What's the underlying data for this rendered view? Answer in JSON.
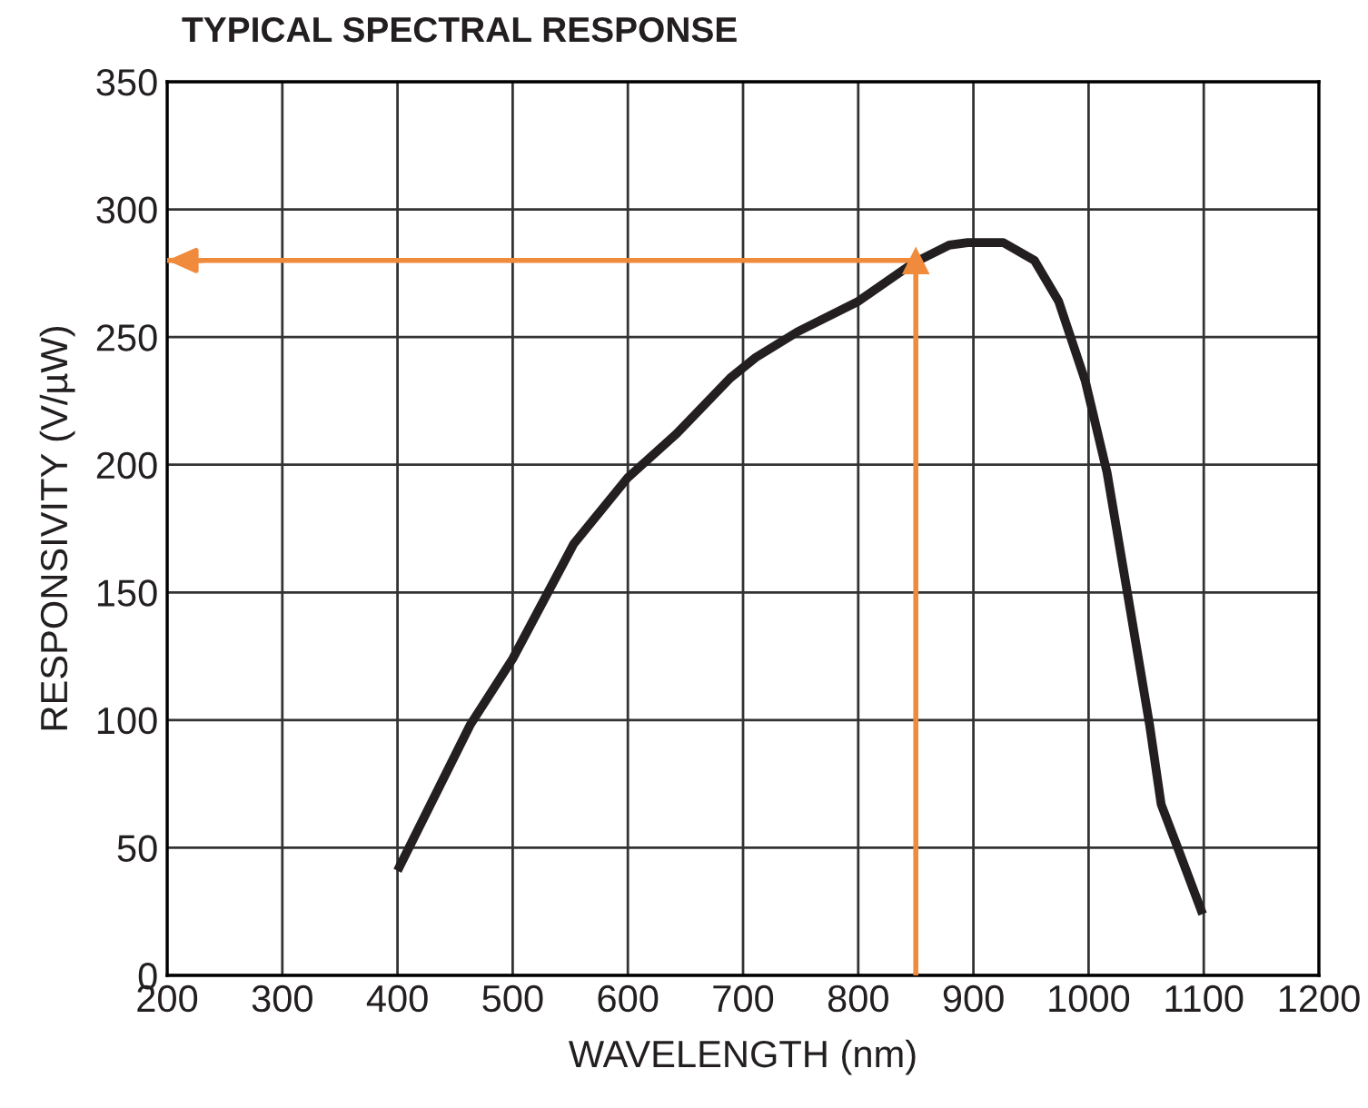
{
  "chart_data": {
    "type": "line",
    "title": "TYPICAL SPECTRAL RESPONSE",
    "xlabel": "WAVELENGTH (nm)",
    "ylabel": "RESPONSIVITY (V/µW)",
    "series": [
      {
        "color": "#231f20",
        "x": [
          400,
          463,
          500,
          553,
          600,
          642,
          689,
          711,
          747,
          800,
          848,
          879,
          895,
          926,
          953,
          974,
          997,
          1016,
          1037,
          1053,
          1063,
          1079,
          1099
        ],
        "values": [
          41,
          98,
          124,
          169,
          195,
          212,
          234,
          242,
          252,
          264,
          279,
          286,
          287,
          287,
          280,
          264,
          233,
          197,
          141,
          98,
          67,
          48,
          24
        ]
      }
    ],
    "ref_lines": [
      {
        "axis": "x",
        "value": 850,
        "color": "#f08a3c"
      },
      {
        "axis": "y",
        "value": 280,
        "color": "#f08a3c"
      }
    ],
    "xlim": [
      200,
      1200
    ],
    "xticks": [
      200,
      300,
      400,
      500,
      600,
      700,
      800,
      900,
      1000,
      1100,
      1200
    ],
    "ylim": [
      0,
      350
    ],
    "yticks": [
      0,
      50,
      100,
      150,
      200,
      250,
      300,
      350
    ],
    "grid": true,
    "marker": "none",
    "line_style": "solid"
  }
}
